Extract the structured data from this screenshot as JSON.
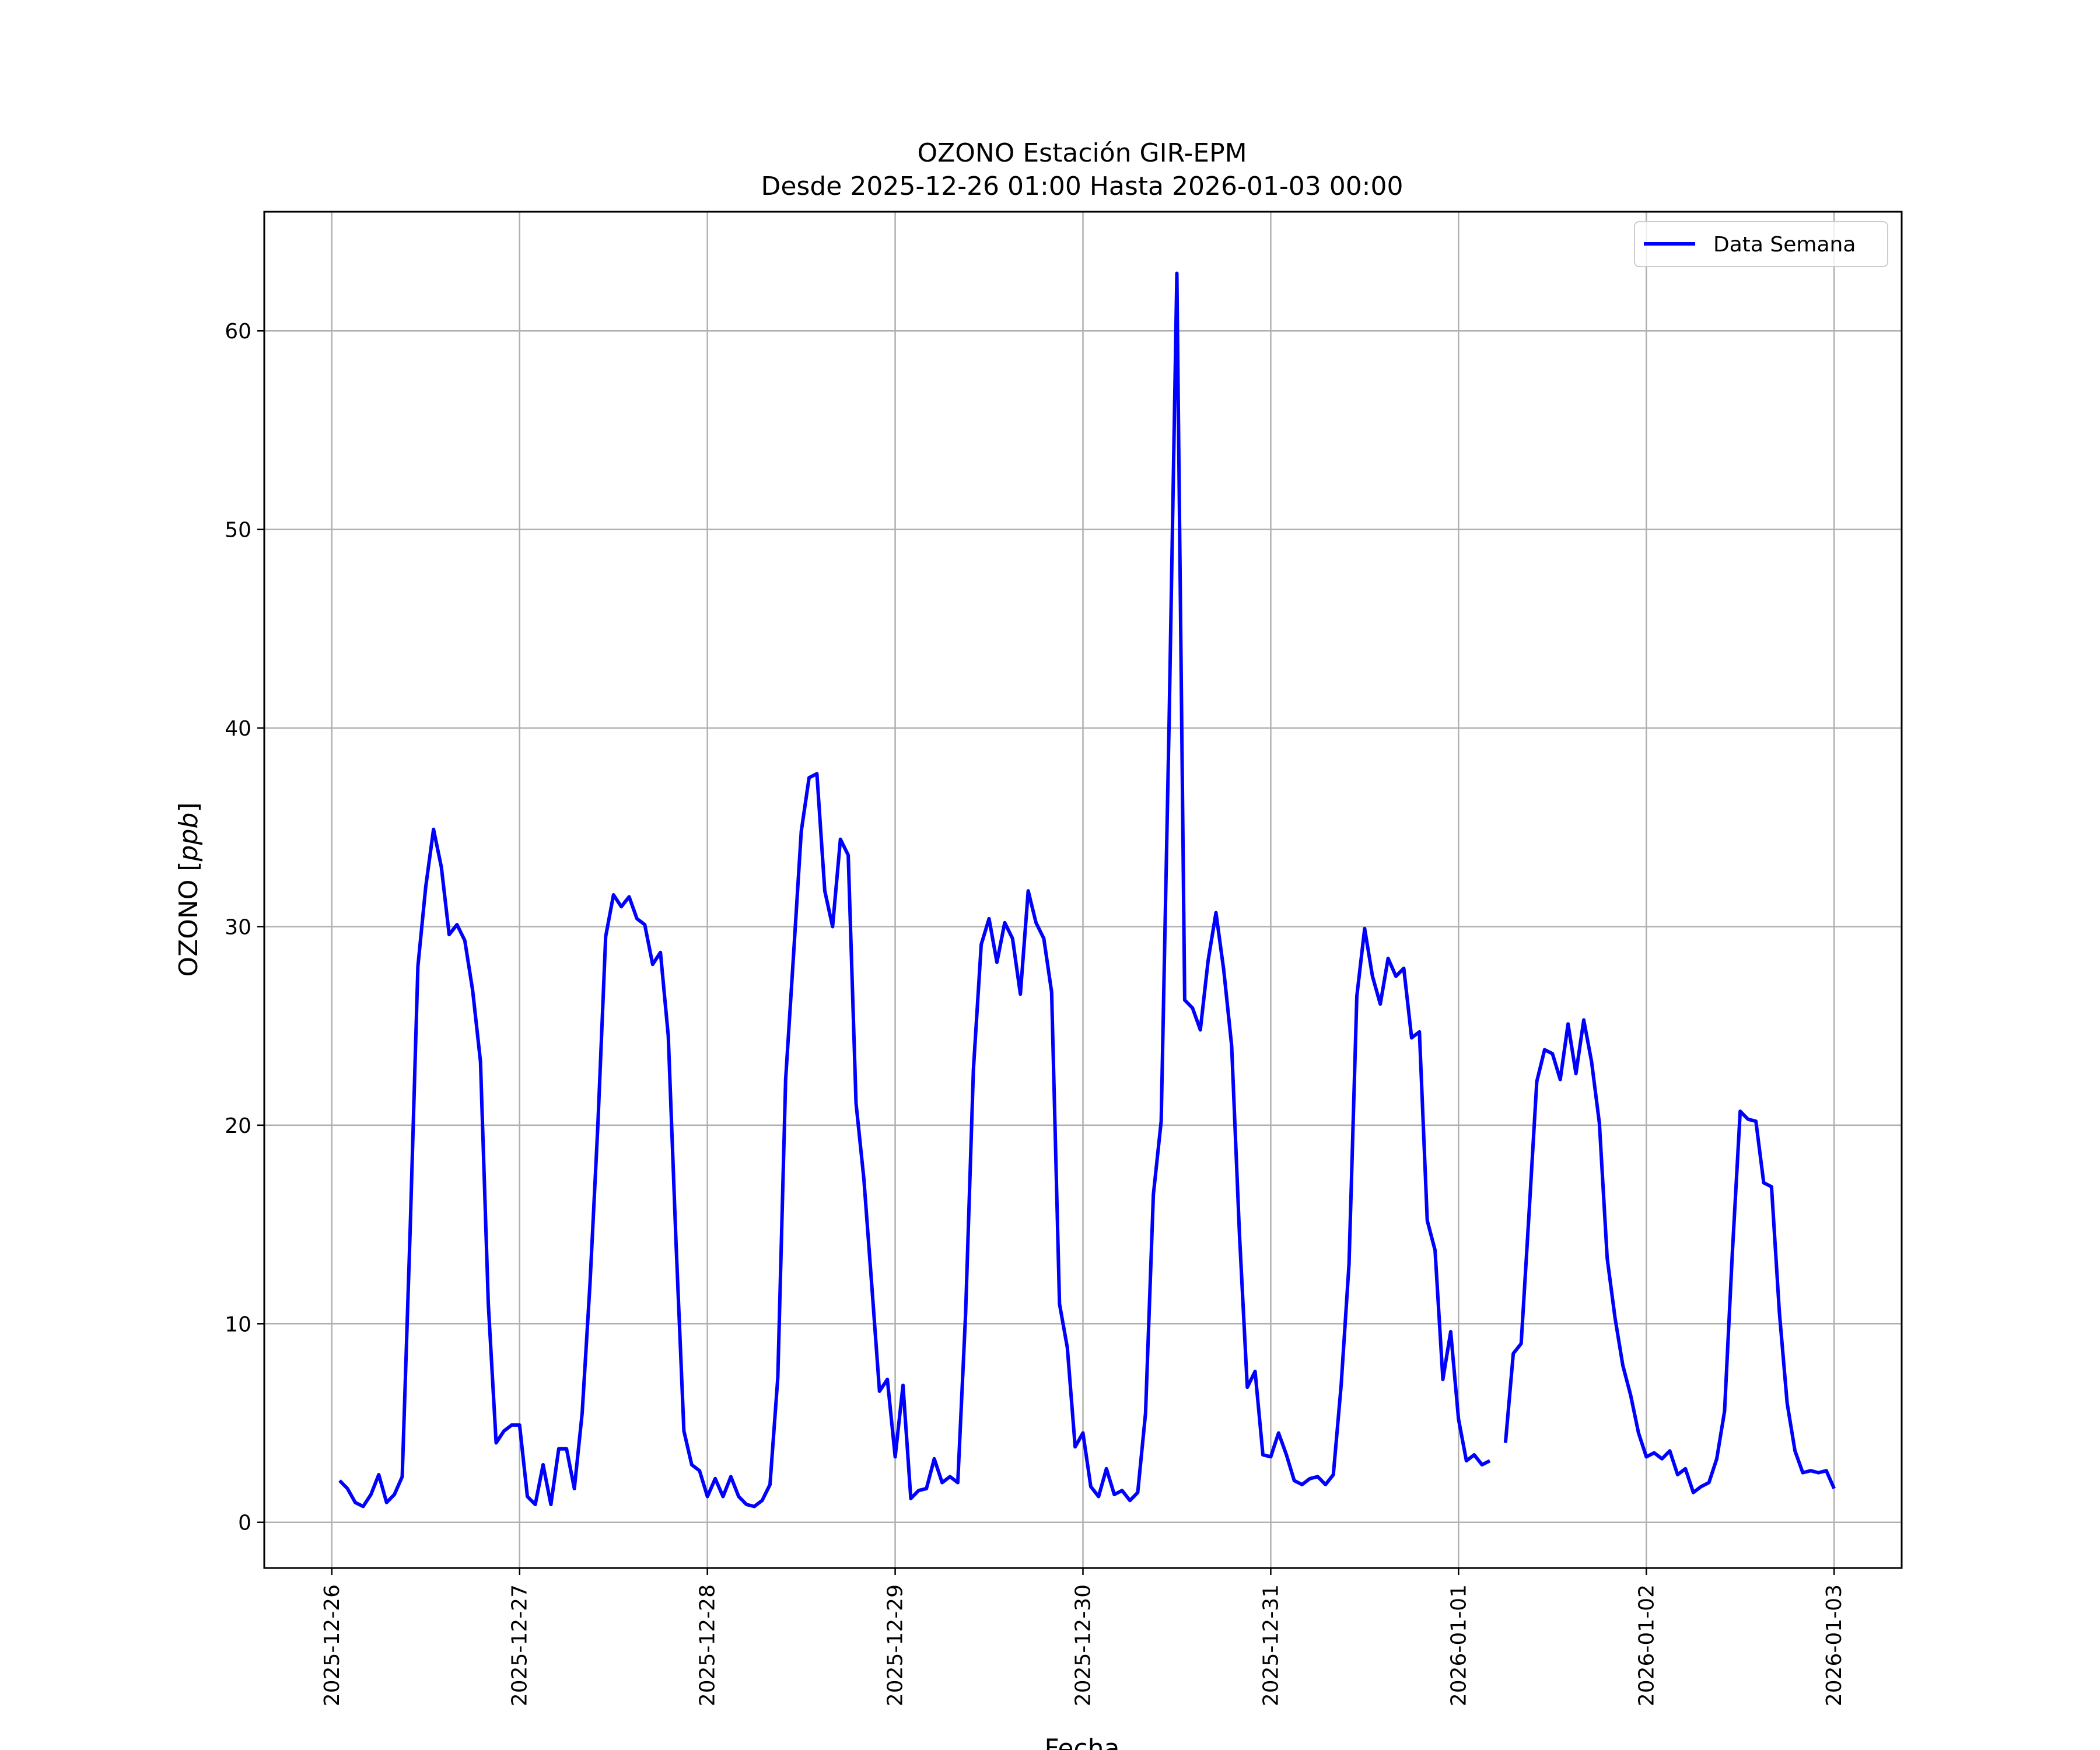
{
  "chart_data": {
    "type": "line",
    "title": "OZONO Estación GIR-EPM",
    "subtitle": "Desde 2025-12-26 01:00 Hasta 2026-01-03 00:00",
    "xlabel": "Fecha",
    "ylabel_prefix": "OZONO [",
    "ylabel_unit": "ppb",
    "ylabel_suffix": "]",
    "x_tick_labels": [
      "2025-12-26",
      "2025-12-27",
      "2025-12-28",
      "2025-12-29",
      "2025-12-30",
      "2025-12-31",
      "2026-01-01",
      "2026-01-02",
      "2026-01-03"
    ],
    "x_range": [
      "2025-12-25 15:22",
      "2026-01-03 08:38"
    ],
    "y_ticks": [
      0,
      10,
      20,
      30,
      40,
      50,
      60
    ],
    "ylim": [
      -2.3,
      66
    ],
    "grid": true,
    "legend_position": "top-right",
    "line_color": "#0000ff",
    "series": [
      {
        "name": "Data Semana",
        "points": [
          [
            "2025-12-26 01:00",
            2.1
          ],
          [
            "2025-12-26 02:00",
            1.7
          ],
          [
            "2025-12-26 03:00",
            1.0
          ],
          [
            "2025-12-26 04:00",
            0.8
          ],
          [
            "2025-12-26 05:00",
            1.4
          ],
          [
            "2025-12-26 06:00",
            2.4
          ],
          [
            "2025-12-26 07:00",
            1.0
          ],
          [
            "2025-12-26 08:00",
            1.4
          ],
          [
            "2025-12-26 09:00",
            2.3
          ],
          [
            "2025-12-26 10:00",
            14.5
          ],
          [
            "2025-12-26 11:00",
            28.0
          ],
          [
            "2025-12-26 12:00",
            32.0
          ],
          [
            "2025-12-26 13:00",
            34.9
          ],
          [
            "2025-12-26 14:00",
            33.0
          ],
          [
            "2025-12-26 15:00",
            29.6
          ],
          [
            "2025-12-26 16:00",
            30.1
          ],
          [
            "2025-12-26 17:00",
            29.3
          ],
          [
            "2025-12-26 18:00",
            26.8
          ],
          [
            "2025-12-26 19:00",
            23.2
          ],
          [
            "2025-12-26 20:00",
            11.0
          ],
          [
            "2025-12-26 21:00",
            4.0
          ],
          [
            "2025-12-26 22:00",
            4.6
          ],
          [
            "2025-12-26 23:00",
            4.9
          ],
          [
            "2025-12-27 00:00",
            4.9
          ],
          [
            "2025-12-27 01:00",
            1.3
          ],
          [
            "2025-12-27 02:00",
            0.9
          ],
          [
            "2025-12-27 03:00",
            2.9
          ],
          [
            "2025-12-27 04:00",
            0.9
          ],
          [
            "2025-12-27 05:00",
            3.7
          ],
          [
            "2025-12-27 06:00",
            3.7
          ],
          [
            "2025-12-27 07:00",
            1.7
          ],
          [
            "2025-12-27 08:00",
            5.5
          ],
          [
            "2025-12-27 09:00",
            12.0
          ],
          [
            "2025-12-27 10:00",
            20.0
          ],
          [
            "2025-12-27 11:00",
            29.5
          ],
          [
            "2025-12-27 12:00",
            31.6
          ],
          [
            "2025-12-27 13:00",
            31.0
          ],
          [
            "2025-12-27 14:00",
            31.5
          ],
          [
            "2025-12-27 15:00",
            30.4
          ],
          [
            "2025-12-27 16:00",
            30.1
          ],
          [
            "2025-12-27 17:00",
            28.1
          ],
          [
            "2025-12-27 18:00",
            28.7
          ],
          [
            "2025-12-27 19:00",
            24.5
          ],
          [
            "2025-12-27 20:00",
            14.0
          ],
          [
            "2025-12-27 21:00",
            4.6
          ],
          [
            "2025-12-27 22:00",
            2.9
          ],
          [
            "2025-12-27 23:00",
            2.6
          ],
          [
            "2025-12-28 00:00",
            1.3
          ],
          [
            "2025-12-28 01:00",
            2.2
          ],
          [
            "2025-12-28 02:00",
            1.3
          ],
          [
            "2025-12-28 03:00",
            2.3
          ],
          [
            "2025-12-28 04:00",
            1.3
          ],
          [
            "2025-12-28 05:00",
            0.9
          ],
          [
            "2025-12-28 06:00",
            0.8
          ],
          [
            "2025-12-28 07:00",
            1.1
          ],
          [
            "2025-12-28 08:00",
            1.9
          ],
          [
            "2025-12-28 09:00",
            7.3
          ],
          [
            "2025-12-28 10:00",
            22.3
          ],
          [
            "2025-12-28 11:00",
            28.5
          ],
          [
            "2025-12-28 12:00",
            34.8
          ],
          [
            "2025-12-28 13:00",
            37.5
          ],
          [
            "2025-12-28 14:00",
            37.7
          ],
          [
            "2025-12-28 15:00",
            31.8
          ],
          [
            "2025-12-28 16:00",
            30.0
          ],
          [
            "2025-12-28 17:00",
            34.4
          ],
          [
            "2025-12-28 18:00",
            33.6
          ],
          [
            "2025-12-28 19:00",
            21.1
          ],
          [
            "2025-12-28 20:00",
            17.3
          ],
          [
            "2025-12-28 21:00",
            12.0
          ],
          [
            "2025-12-28 22:00",
            6.6
          ],
          [
            "2025-12-28 23:00",
            7.2
          ],
          [
            "2025-12-29 00:00",
            3.3
          ],
          [
            "2025-12-29 01:00",
            6.9
          ],
          [
            "2025-12-29 02:00",
            1.2
          ],
          [
            "2025-12-29 03:00",
            1.6
          ],
          [
            "2025-12-29 04:00",
            1.7
          ],
          [
            "2025-12-29 05:00",
            3.2
          ],
          [
            "2025-12-29 06:00",
            2.0
          ],
          [
            "2025-12-29 07:00",
            2.3
          ],
          [
            "2025-12-29 08:00",
            2.0
          ],
          [
            "2025-12-29 09:00",
            10.5
          ],
          [
            "2025-12-29 10:00",
            22.8
          ],
          [
            "2025-12-29 11:00",
            29.1
          ],
          [
            "2025-12-29 12:00",
            30.4
          ],
          [
            "2025-12-29 13:00",
            28.2
          ],
          [
            "2025-12-29 14:00",
            30.2
          ],
          [
            "2025-12-29 15:00",
            29.4
          ],
          [
            "2025-12-29 16:00",
            26.6
          ],
          [
            "2025-12-29 17:00",
            31.8
          ],
          [
            "2025-12-29 18:00",
            30.2
          ],
          [
            "2025-12-29 19:00",
            29.4
          ],
          [
            "2025-12-29 20:00",
            26.7
          ],
          [
            "2025-12-29 21:00",
            11.0
          ],
          [
            "2025-12-29 22:00",
            8.8
          ],
          [
            "2025-12-29 23:00",
            3.8
          ],
          [
            "2025-12-30 00:00",
            4.5
          ],
          [
            "2025-12-30 01:00",
            1.8
          ],
          [
            "2025-12-30 02:00",
            1.3
          ],
          [
            "2025-12-30 03:00",
            2.7
          ],
          [
            "2025-12-30 04:00",
            1.4
          ],
          [
            "2025-12-30 05:00",
            1.6
          ],
          [
            "2025-12-30 06:00",
            1.1
          ],
          [
            "2025-12-30 07:00",
            1.5
          ],
          [
            "2025-12-30 08:00",
            5.5
          ],
          [
            "2025-12-30 09:00",
            16.5
          ],
          [
            "2025-12-30 10:00",
            20.2
          ],
          [
            "2025-12-30 11:00",
            40.0
          ],
          [
            "2025-12-30 12:00",
            62.9
          ],
          [
            "2025-12-30 13:00",
            26.3
          ],
          [
            "2025-12-30 14:00",
            25.9
          ],
          [
            "2025-12-30 15:00",
            24.8
          ],
          [
            "2025-12-30 16:00",
            28.3
          ],
          [
            "2025-12-30 17:00",
            30.7
          ],
          [
            "2025-12-30 18:00",
            27.8
          ],
          [
            "2025-12-30 19:00",
            24.0
          ],
          [
            "2025-12-30 20:00",
            14.5
          ],
          [
            "2025-12-30 21:00",
            6.8
          ],
          [
            "2025-12-30 22:00",
            7.6
          ],
          [
            "2025-12-30 23:00",
            3.4
          ],
          [
            "2025-12-31 00:00",
            3.3
          ],
          [
            "2025-12-31 01:00",
            4.5
          ],
          [
            "2025-12-31 02:00",
            3.4
          ],
          [
            "2025-12-31 03:00",
            2.1
          ],
          [
            "2025-12-31 04:00",
            1.9
          ],
          [
            "2025-12-31 05:00",
            2.2
          ],
          [
            "2025-12-31 06:00",
            2.3
          ],
          [
            "2025-12-31 07:00",
            1.9
          ],
          [
            "2025-12-31 08:00",
            2.4
          ],
          [
            "2025-12-31 09:00",
            6.9
          ],
          [
            "2025-12-31 10:00",
            13.0
          ],
          [
            "2025-12-31 11:00",
            26.5
          ],
          [
            "2025-12-31 12:00",
            29.9
          ],
          [
            "2025-12-31 13:00",
            27.5
          ],
          [
            "2025-12-31 14:00",
            26.1
          ],
          [
            "2025-12-31 15:00",
            28.4
          ],
          [
            "2025-12-31 16:00",
            27.5
          ],
          [
            "2025-12-31 17:00",
            27.9
          ],
          [
            "2025-12-31 18:00",
            24.4
          ],
          [
            "2025-12-31 19:00",
            24.7
          ],
          [
            "2025-12-31 20:00",
            15.2
          ],
          [
            "2025-12-31 21:00",
            13.7
          ],
          [
            "2025-12-31 22:00",
            7.2
          ],
          [
            "2025-12-31 23:00",
            9.6
          ],
          [
            "2026-01-01 00:00",
            5.2
          ],
          [
            "2026-01-01 01:00",
            3.1
          ],
          [
            "2026-01-01 02:00",
            3.4
          ],
          [
            "2026-01-01 03:00",
            2.9
          ],
          [
            "2026-01-01 04:00",
            3.1
          ],
          [
            "2026-01-01 05:00",
            null
          ],
          [
            "2026-01-01 06:00",
            4.0
          ],
          [
            "2026-01-01 07:00",
            8.5
          ],
          [
            "2026-01-01 08:00",
            9.0
          ],
          [
            "2026-01-01 09:00",
            15.5
          ],
          [
            "2026-01-01 10:00",
            22.2
          ],
          [
            "2026-01-01 11:00",
            23.8
          ],
          [
            "2026-01-01 12:00",
            23.6
          ],
          [
            "2026-01-01 13:00",
            22.3
          ],
          [
            "2026-01-01 14:00",
            25.1
          ],
          [
            "2026-01-01 15:00",
            22.6
          ],
          [
            "2026-01-01 16:00",
            25.3
          ],
          [
            "2026-01-01 17:00",
            23.2
          ],
          [
            "2026-01-01 18:00",
            20.1
          ],
          [
            "2026-01-01 19:00",
            13.3
          ],
          [
            "2026-01-01 20:00",
            10.3
          ],
          [
            "2026-01-01 21:00",
            7.9
          ],
          [
            "2026-01-01 22:00",
            6.4
          ],
          [
            "2026-01-01 23:00",
            4.5
          ],
          [
            "2026-01-02 00:00",
            3.3
          ],
          [
            "2026-01-02 01:00",
            3.5
          ],
          [
            "2026-01-02 02:00",
            3.2
          ],
          [
            "2026-01-02 03:00",
            3.6
          ],
          [
            "2026-01-02 04:00",
            2.4
          ],
          [
            "2026-01-02 05:00",
            2.7
          ],
          [
            "2026-01-02 06:00",
            1.5
          ],
          [
            "2026-01-02 07:00",
            1.8
          ],
          [
            "2026-01-02 08:00",
            2.0
          ],
          [
            "2026-01-02 09:00",
            3.2
          ],
          [
            "2026-01-02 10:00",
            5.6
          ],
          [
            "2026-01-02 11:00",
            13.6
          ],
          [
            "2026-01-02 12:00",
            20.7
          ],
          [
            "2026-01-02 13:00",
            20.3
          ],
          [
            "2026-01-02 14:00",
            20.2
          ],
          [
            "2026-01-02 15:00",
            17.1
          ],
          [
            "2026-01-02 16:00",
            16.9
          ],
          [
            "2026-01-02 17:00",
            10.6
          ],
          [
            "2026-01-02 18:00",
            6.0
          ],
          [
            "2026-01-02 19:00",
            3.6
          ],
          [
            "2026-01-02 20:00",
            2.5
          ],
          [
            "2026-01-02 21:00",
            2.6
          ],
          [
            "2026-01-02 22:00",
            2.5
          ],
          [
            "2026-01-02 23:00",
            2.6
          ],
          [
            "2026-01-03 00:00",
            1.7
          ]
        ]
      }
    ]
  }
}
